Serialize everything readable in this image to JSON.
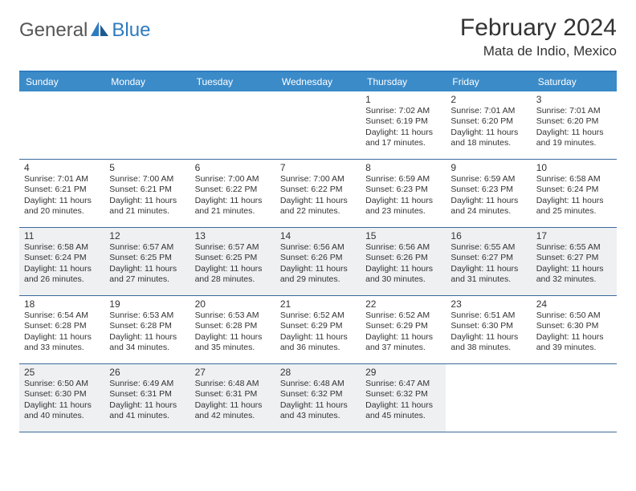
{
  "logo": {
    "general": "General",
    "blue": "Blue"
  },
  "title": "February 2024",
  "location": "Mata de Indio, Mexico",
  "colors": {
    "header_bar": "#3b8bc9",
    "top_border": "#2f7bbf",
    "row_border": "#3b6a9a",
    "alt_bg": "#eef0f2",
    "logo_gray": "#555",
    "logo_blue": "#2f7bbf"
  },
  "dow": [
    "Sunday",
    "Monday",
    "Tuesday",
    "Wednesday",
    "Thursday",
    "Friday",
    "Saturday"
  ],
  "weeks": [
    {
      "alt": false,
      "days": [
        null,
        null,
        null,
        null,
        {
          "n": "1",
          "sr": "7:02 AM",
          "ss": "6:19 PM",
          "dl": "11 hours and 17 minutes."
        },
        {
          "n": "2",
          "sr": "7:01 AM",
          "ss": "6:20 PM",
          "dl": "11 hours and 18 minutes."
        },
        {
          "n": "3",
          "sr": "7:01 AM",
          "ss": "6:20 PM",
          "dl": "11 hours and 19 minutes."
        }
      ]
    },
    {
      "alt": false,
      "days": [
        {
          "n": "4",
          "sr": "7:01 AM",
          "ss": "6:21 PM",
          "dl": "11 hours and 20 minutes."
        },
        {
          "n": "5",
          "sr": "7:00 AM",
          "ss": "6:21 PM",
          "dl": "11 hours and 21 minutes."
        },
        {
          "n": "6",
          "sr": "7:00 AM",
          "ss": "6:22 PM",
          "dl": "11 hours and 21 minutes."
        },
        {
          "n": "7",
          "sr": "7:00 AM",
          "ss": "6:22 PM",
          "dl": "11 hours and 22 minutes."
        },
        {
          "n": "8",
          "sr": "6:59 AM",
          "ss": "6:23 PM",
          "dl": "11 hours and 23 minutes."
        },
        {
          "n": "9",
          "sr": "6:59 AM",
          "ss": "6:23 PM",
          "dl": "11 hours and 24 minutes."
        },
        {
          "n": "10",
          "sr": "6:58 AM",
          "ss": "6:24 PM",
          "dl": "11 hours and 25 minutes."
        }
      ]
    },
    {
      "alt": true,
      "days": [
        {
          "n": "11",
          "sr": "6:58 AM",
          "ss": "6:24 PM",
          "dl": "11 hours and 26 minutes."
        },
        {
          "n": "12",
          "sr": "6:57 AM",
          "ss": "6:25 PM",
          "dl": "11 hours and 27 minutes."
        },
        {
          "n": "13",
          "sr": "6:57 AM",
          "ss": "6:25 PM",
          "dl": "11 hours and 28 minutes."
        },
        {
          "n": "14",
          "sr": "6:56 AM",
          "ss": "6:26 PM",
          "dl": "11 hours and 29 minutes."
        },
        {
          "n": "15",
          "sr": "6:56 AM",
          "ss": "6:26 PM",
          "dl": "11 hours and 30 minutes."
        },
        {
          "n": "16",
          "sr": "6:55 AM",
          "ss": "6:27 PM",
          "dl": "11 hours and 31 minutes."
        },
        {
          "n": "17",
          "sr": "6:55 AM",
          "ss": "6:27 PM",
          "dl": "11 hours and 32 minutes."
        }
      ]
    },
    {
      "alt": false,
      "days": [
        {
          "n": "18",
          "sr": "6:54 AM",
          "ss": "6:28 PM",
          "dl": "11 hours and 33 minutes."
        },
        {
          "n": "19",
          "sr": "6:53 AM",
          "ss": "6:28 PM",
          "dl": "11 hours and 34 minutes."
        },
        {
          "n": "20",
          "sr": "6:53 AM",
          "ss": "6:28 PM",
          "dl": "11 hours and 35 minutes."
        },
        {
          "n": "21",
          "sr": "6:52 AM",
          "ss": "6:29 PM",
          "dl": "11 hours and 36 minutes."
        },
        {
          "n": "22",
          "sr": "6:52 AM",
          "ss": "6:29 PM",
          "dl": "11 hours and 37 minutes."
        },
        {
          "n": "23",
          "sr": "6:51 AM",
          "ss": "6:30 PM",
          "dl": "11 hours and 38 minutes."
        },
        {
          "n": "24",
          "sr": "6:50 AM",
          "ss": "6:30 PM",
          "dl": "11 hours and 39 minutes."
        }
      ]
    },
    {
      "alt": true,
      "days": [
        {
          "n": "25",
          "sr": "6:50 AM",
          "ss": "6:30 PM",
          "dl": "11 hours and 40 minutes."
        },
        {
          "n": "26",
          "sr": "6:49 AM",
          "ss": "6:31 PM",
          "dl": "11 hours and 41 minutes."
        },
        {
          "n": "27",
          "sr": "6:48 AM",
          "ss": "6:31 PM",
          "dl": "11 hours and 42 minutes."
        },
        {
          "n": "28",
          "sr": "6:48 AM",
          "ss": "6:32 PM",
          "dl": "11 hours and 43 minutes."
        },
        {
          "n": "29",
          "sr": "6:47 AM",
          "ss": "6:32 PM",
          "dl": "11 hours and 45 minutes."
        },
        null,
        null
      ]
    }
  ],
  "labels": {
    "sunrise": "Sunrise: ",
    "sunset": "Sunset: ",
    "daylight": "Daylight: "
  }
}
